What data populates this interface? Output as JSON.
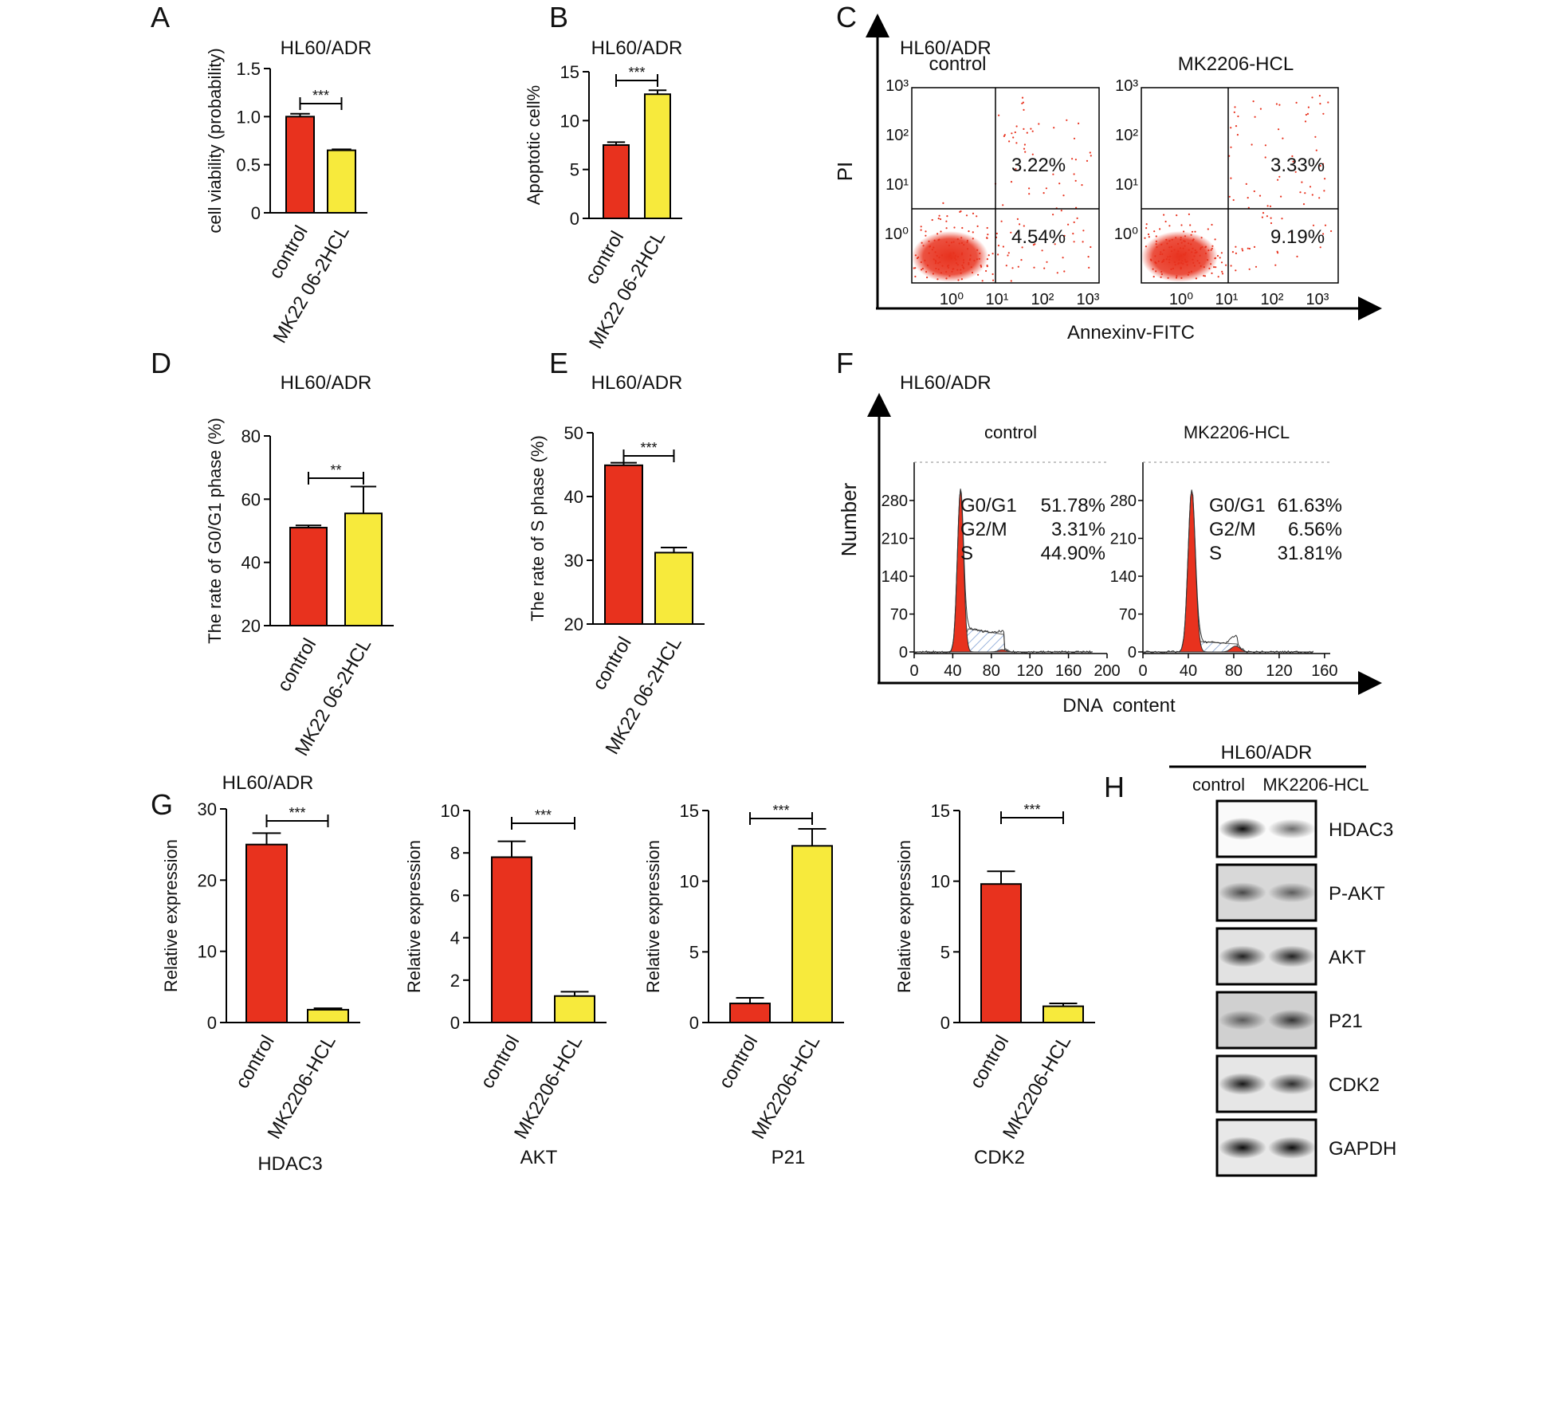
{
  "panel_labels": [
    "A",
    "B",
    "C",
    "D",
    "E",
    "F",
    "G",
    "H"
  ],
  "chart_data": [
    {
      "type": "bar",
      "title": "HL60/ADR",
      "ylabel": "cell viability (probability)",
      "categories": [
        "control",
        "MK22 06-2HCL"
      ],
      "values": [
        1.0,
        0.65
      ],
      "errors": [
        0.03,
        0.01
      ],
      "colors": [
        "#e8321e",
        "#f7ea3c"
      ],
      "significance": "***",
      "ylim": [
        0,
        1.5
      ],
      "yticks": [
        0,
        0.5,
        {
          "value": 1,
          "label": "1.0"
        },
        1.5
      ]
    },
    {
      "type": "bar",
      "title": "HL60/ADR",
      "ylabel": "Apoptotic cell%",
      "categories": [
        "control",
        "MK22 06-2HCL"
      ],
      "values": [
        7.5,
        12.7
      ],
      "errors": [
        0.3,
        0.4
      ],
      "colors": [
        "#e8321e",
        "#f7ea3c"
      ],
      "significance": "***",
      "ylim": [
        0,
        15
      ],
      "yticks": [
        0,
        5,
        10,
        15
      ]
    },
    {
      "type": "bar",
      "title": "HL60/ADR",
      "ylabel": "The rate of G0/G1 phase (%)",
      "categories": [
        "control",
        "MK22 06-2HCL"
      ],
      "values": [
        51,
        55.5
      ],
      "errors": [
        0.7,
        8.5
      ],
      "colors": [
        "#e8321e",
        "#f7ea3c"
      ],
      "significance": "**",
      "ylim": [
        20,
        80
      ],
      "yticks": [
        20,
        40,
        60,
        80
      ]
    },
    {
      "type": "bar",
      "title": "HL60/ADR",
      "ylabel": "The rate of S phase (%)",
      "categories": [
        "control",
        "MK22 06-2HCL"
      ],
      "values": [
        44.9,
        31.2
      ],
      "errors": [
        0.4,
        0.8
      ],
      "colors": [
        "#e8321e",
        "#f7ea3c"
      ],
      "significance": "***",
      "ylim": [
        20,
        50
      ],
      "yticks": [
        20,
        30,
        40,
        50
      ]
    },
    {
      "type": "bar",
      "title": "HL60/ADR",
      "ylabel": "Relative expression",
      "xlabel": "HDAC3",
      "categories": [
        "control",
        "MK2206-HCL"
      ],
      "values": [
        25,
        1.8
      ],
      "errors": [
        1.6,
        0.2
      ],
      "colors": [
        "#e8321e",
        "#f7ea3c"
      ],
      "significance": "***",
      "ylim": [
        0,
        30
      ],
      "yticks": [
        0,
        10,
        20,
        30
      ]
    },
    {
      "type": "bar",
      "ylabel": "Relative expression",
      "xlabel": "AKT",
      "categories": [
        "control",
        "MK2206-HCL"
      ],
      "values": [
        7.8,
        1.25
      ],
      "errors": [
        0.75,
        0.2
      ],
      "colors": [
        "#e8321e",
        "#f7ea3c"
      ],
      "significance": "***",
      "ylim": [
        0,
        10
      ],
      "yticks": [
        0,
        2,
        4,
        6,
        8,
        10
      ]
    },
    {
      "type": "bar",
      "ylabel": "Relative expression",
      "xlabel": "P21",
      "categories": [
        "control",
        "MK2206-HCL"
      ],
      "values": [
        1.35,
        12.5
      ],
      "errors": [
        0.4,
        1.2
      ],
      "colors": [
        "#e8321e",
        "#f7ea3c"
      ],
      "significance": "***",
      "ylim": [
        0,
        15
      ],
      "yticks": [
        0,
        5,
        10,
        15
      ]
    },
    {
      "type": "bar",
      "ylabel": "Relative expression",
      "xlabel": "CDK2",
      "categories": [
        "control",
        "MK2206-HCL"
      ],
      "values": [
        9.8,
        1.15
      ],
      "errors": [
        0.9,
        0.2
      ],
      "colors": [
        "#e8321e",
        "#f7ea3c"
      ],
      "significance": "***",
      "ylim": [
        0,
        15
      ],
      "yticks": [
        0,
        5,
        10,
        15
      ]
    }
  ],
  "flow_cytometry": {
    "title": "HL60/ADR",
    "axis_x": "Annexinv-FITC",
    "axis_y": "PI",
    "ticks": [
      "10⁰",
      "10¹",
      "10²",
      "10³"
    ],
    "panels": [
      {
        "name": "control",
        "upper_right": "3.22%",
        "lower_right": "4.54%"
      },
      {
        "name": "MK2206-HCL",
        "upper_right": "3.33%",
        "lower_right": "9.19%"
      }
    ]
  },
  "cell_cycle": {
    "title": "HL60/ADR",
    "axis_x": "DNA  content",
    "axis_y": "Number",
    "yticks": [
      0,
      70,
      140,
      210,
      280
    ],
    "panels": [
      {
        "name": "control",
        "rows": [
          [
            "G0/G1",
            "51.78%"
          ],
          [
            "G2/M",
            "3.31%"
          ],
          [
            "S",
            "44.90%"
          ]
        ],
        "xticks": [
          0,
          40,
          80,
          120,
          160,
          200
        ]
      },
      {
        "name": "MK2206-HCL",
        "rows": [
          [
            "G0/G1",
            "61.63%"
          ],
          [
            "G2/M",
            "6.56%"
          ],
          [
            "S",
            "31.81%"
          ]
        ],
        "xticks": [
          0,
          40,
          80,
          120,
          160
        ]
      }
    ]
  },
  "western_blot": {
    "group": "HL60/ADR",
    "columns": [
      "control",
      "MK2206-HCL"
    ],
    "rows": [
      "HDAC3",
      "P-AKT",
      "AKT",
      "P21",
      "CDK2",
      "GAPDH"
    ]
  }
}
